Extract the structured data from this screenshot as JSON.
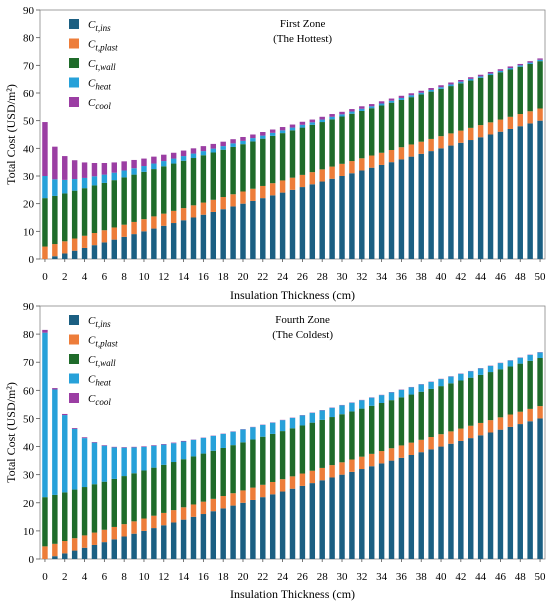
{
  "colors": {
    "ins": "#1b5f82",
    "plast": "#ed7d3a",
    "wall": "#1f6b2a",
    "heat": "#27a1d9",
    "cool": "#9b3ea3"
  },
  "chart_data": [
    {
      "type": "bar",
      "stacked": true,
      "title_line1": "First Zone",
      "title_line2": "(The Hottest)",
      "xlabel": "Insulation Thickness (cm)",
      "ylabel": "Total Cost (USD/m²)",
      "ylim": [
        0,
        90
      ],
      "yticks": [
        0,
        10,
        20,
        30,
        40,
        50,
        60,
        70,
        80,
        90
      ],
      "xtick_labels": [
        "0",
        "2",
        "4",
        "6",
        "8",
        "10",
        "12",
        "14",
        "16",
        "18",
        "20",
        "22",
        "24",
        "26",
        "28",
        "30",
        "32",
        "34",
        "36",
        "38",
        "40",
        "42",
        "44",
        "46",
        "48",
        "50"
      ],
      "categories": [
        0,
        1,
        2,
        3,
        4,
        5,
        6,
        7,
        8,
        9,
        10,
        11,
        12,
        13,
        14,
        15,
        16,
        17,
        18,
        19,
        20,
        21,
        22,
        23,
        24,
        25,
        26,
        27,
        28,
        29,
        30,
        31,
        32,
        33,
        34,
        35,
        36,
        37,
        38,
        39,
        40,
        41,
        42,
        43,
        44,
        45,
        46,
        47,
        48,
        49,
        50
      ],
      "legend": [
        {
          "key": "ins",
          "base": "C",
          "sub": "t,ins"
        },
        {
          "key": "plast",
          "base": "C",
          "sub": "t,plast"
        },
        {
          "key": "wall",
          "base": "C",
          "sub": "t,wall"
        },
        {
          "key": "heat",
          "base": "C",
          "sub": "heat"
        },
        {
          "key": "cool",
          "base": "C",
          "sub": "cool"
        }
      ],
      "series": [
        {
          "key": "ins",
          "values": [
            0.0,
            1.0,
            2.0,
            3.0,
            4.0,
            5.0,
            6.0,
            7.0,
            8.0,
            9.0,
            10.0,
            11.0,
            12.0,
            13.0,
            14.0,
            15.0,
            16.0,
            17.0,
            18.0,
            19.0,
            20.0,
            21.0,
            22.0,
            23.0,
            24.0,
            25.0,
            26.0,
            27.0,
            28.0,
            29.0,
            30.0,
            31.0,
            32.0,
            33.0,
            34.0,
            35.0,
            36.0,
            37.0,
            38.0,
            39.0,
            40.0,
            41.0,
            42.0,
            43.0,
            44.0,
            45.0,
            46.0,
            47.0,
            48.0,
            49.0,
            50.0
          ]
        },
        {
          "key": "plast",
          "values": [
            4.5,
            4.4,
            4.4,
            4.4,
            4.4,
            4.4,
            4.4,
            4.4,
            4.4,
            4.4,
            4.4,
            4.4,
            4.4,
            4.4,
            4.4,
            4.4,
            4.4,
            4.4,
            4.4,
            4.4,
            4.4,
            4.4,
            4.4,
            4.4,
            4.4,
            4.4,
            4.4,
            4.4,
            4.4,
            4.4,
            4.4,
            4.4,
            4.4,
            4.4,
            4.4,
            4.4,
            4.4,
            4.4,
            4.4,
            4.4,
            4.4,
            4.4,
            4.4,
            4.4,
            4.4,
            4.4,
            4.4,
            4.4,
            4.4,
            4.4,
            4.4
          ]
        },
        {
          "key": "wall",
          "values": [
            17.5,
            17.4,
            17.3,
            17.3,
            17.2,
            17.2,
            17.1,
            17.1,
            17.1,
            17.1,
            17.1,
            17.1,
            17.1,
            17.1,
            17.1,
            17.1,
            17.1,
            17.1,
            17.1,
            17.1,
            17.1,
            17.1,
            17.1,
            17.1,
            17.1,
            17.1,
            17.1,
            17.1,
            17.1,
            17.1,
            17.1,
            17.1,
            17.1,
            17.1,
            17.1,
            17.1,
            17.1,
            17.1,
            17.1,
            17.1,
            17.1,
            17.1,
            17.1,
            17.1,
            17.1,
            17.1,
            17.1,
            17.1,
            17.1,
            17.1,
            17.1
          ]
        },
        {
          "key": "heat",
          "values": [
            8.0,
            6.0,
            4.9,
            4.2,
            3.7,
            3.3,
            3.0,
            2.7,
            2.5,
            2.3,
            2.1,
            2.0,
            1.9,
            1.8,
            1.7,
            1.6,
            1.5,
            1.4,
            1.3,
            1.3,
            1.2,
            1.2,
            1.1,
            1.1,
            1.0,
            1.0,
            1.0,
            0.9,
            0.9,
            0.9,
            0.8,
            0.8,
            0.8,
            0.7,
            0.7,
            0.7,
            0.7,
            0.7,
            0.6,
            0.6,
            0.6,
            0.6,
            0.6,
            0.6,
            0.5,
            0.5,
            0.5,
            0.5,
            0.5,
            0.5,
            0.5
          ]
        },
        {
          "key": "cool",
          "values": [
            19.5,
            11.8,
            8.6,
            6.8,
            5.6,
            4.8,
            4.2,
            3.7,
            3.3,
            3.0,
            2.7,
            2.5,
            2.3,
            2.1,
            2.0,
            1.9,
            1.8,
            1.7,
            1.6,
            1.5,
            1.4,
            1.3,
            1.3,
            1.2,
            1.2,
            1.1,
            1.1,
            1.0,
            1.0,
            1.0,
            0.9,
            0.9,
            0.9,
            0.8,
            0.8,
            0.8,
            0.8,
            0.7,
            0.7,
            0.7,
            0.7,
            0.7,
            0.6,
            0.6,
            0.6,
            0.6,
            0.6,
            0.6,
            0.5,
            0.5,
            0.5
          ]
        }
      ]
    },
    {
      "type": "bar",
      "stacked": true,
      "title_line1": "Fourth Zone",
      "title_line2": "(The Coldest)",
      "xlabel": "Insulation Thickness (cm)",
      "ylabel": "Total Cost (USD/m²)",
      "ylim": [
        0,
        90
      ],
      "yticks": [
        0,
        10,
        20,
        30,
        40,
        50,
        60,
        70,
        80,
        90
      ],
      "xtick_labels": [
        "0",
        "2",
        "4",
        "6",
        "8",
        "10",
        "12",
        "14",
        "16",
        "18",
        "20",
        "22",
        "24",
        "26",
        "28",
        "30",
        "32",
        "34",
        "36",
        "38",
        "40",
        "42",
        "44",
        "46",
        "48",
        "50"
      ],
      "categories": [
        0,
        1,
        2,
        3,
        4,
        5,
        6,
        7,
        8,
        9,
        10,
        11,
        12,
        13,
        14,
        15,
        16,
        17,
        18,
        19,
        20,
        21,
        22,
        23,
        24,
        25,
        26,
        27,
        28,
        29,
        30,
        31,
        32,
        33,
        34,
        35,
        36,
        37,
        38,
        39,
        40,
        41,
        42,
        43,
        44,
        45,
        46,
        47,
        48,
        49,
        50
      ],
      "legend": [
        {
          "key": "ins",
          "base": "C",
          "sub": "t,ins"
        },
        {
          "key": "plast",
          "base": "C",
          "sub": "t,plast"
        },
        {
          "key": "wall",
          "base": "C",
          "sub": "t,wall"
        },
        {
          "key": "heat",
          "base": "C",
          "sub": "heat"
        },
        {
          "key": "cool",
          "base": "C",
          "sub": "cool"
        }
      ],
      "series": [
        {
          "key": "ins",
          "values": [
            0.0,
            1.0,
            2.0,
            3.0,
            4.0,
            5.0,
            6.0,
            7.0,
            8.0,
            9.0,
            10.0,
            11.0,
            12.0,
            13.0,
            14.0,
            15.0,
            16.0,
            17.0,
            18.0,
            19.0,
            20.0,
            21.0,
            22.0,
            23.0,
            24.0,
            25.0,
            26.0,
            27.0,
            28.0,
            29.0,
            30.0,
            31.0,
            32.0,
            33.0,
            34.0,
            35.0,
            36.0,
            37.0,
            38.0,
            39.0,
            40.0,
            41.0,
            42.0,
            43.0,
            44.0,
            45.0,
            46.0,
            47.0,
            48.0,
            49.0,
            50.0
          ]
        },
        {
          "key": "plast",
          "values": [
            4.5,
            4.4,
            4.4,
            4.4,
            4.4,
            4.4,
            4.4,
            4.4,
            4.4,
            4.4,
            4.4,
            4.4,
            4.4,
            4.4,
            4.4,
            4.4,
            4.4,
            4.4,
            4.4,
            4.4,
            4.4,
            4.4,
            4.4,
            4.4,
            4.4,
            4.4,
            4.4,
            4.4,
            4.4,
            4.4,
            4.4,
            4.4,
            4.4,
            4.4,
            4.4,
            4.4,
            4.4,
            4.4,
            4.4,
            4.4,
            4.4,
            4.4,
            4.4,
            4.4,
            4.4,
            4.4,
            4.4,
            4.4,
            4.4,
            4.4,
            4.4
          ]
        },
        {
          "key": "wall",
          "values": [
            17.5,
            17.4,
            17.3,
            17.3,
            17.2,
            17.2,
            17.1,
            17.1,
            17.1,
            17.1,
            17.1,
            17.1,
            17.1,
            17.1,
            17.1,
            17.1,
            17.1,
            17.1,
            17.1,
            17.1,
            17.1,
            17.1,
            17.1,
            17.1,
            17.1,
            17.1,
            17.1,
            17.1,
            17.1,
            17.1,
            17.1,
            17.1,
            17.1,
            17.1,
            17.1,
            17.1,
            17.1,
            17.1,
            17.1,
            17.1,
            17.1,
            17.1,
            17.1,
            17.1,
            17.1,
            17.1,
            17.1,
            17.1,
            17.1,
            17.1,
            17.1
          ]
        },
        {
          "key": "heat",
          "values": [
            58.5,
            37.5,
            27.5,
            21.6,
            17.4,
            14.8,
            12.8,
            11.2,
            10.1,
            9.2,
            8.4,
            7.8,
            7.2,
            6.7,
            6.3,
            5.9,
            5.6,
            5.3,
            5.0,
            4.8,
            4.6,
            4.4,
            4.2,
            4.0,
            3.9,
            3.7,
            3.6,
            3.5,
            3.4,
            3.3,
            3.2,
            3.1,
            3.0,
            2.9,
            2.8,
            2.8,
            2.7,
            2.6,
            2.6,
            2.5,
            2.5,
            2.4,
            2.4,
            2.3,
            2.3,
            2.2,
            2.2,
            2.1,
            2.1,
            2.1,
            2.0
          ]
        },
        {
          "key": "cool",
          "values": [
            1.0,
            0.5,
            0.4,
            0.3,
            0.3,
            0.2,
            0.2,
            0.2,
            0.2,
            0.2,
            0.2,
            0.2,
            0.2,
            0.2,
            0.2,
            0.1,
            0.1,
            0.1,
            0.1,
            0.1,
            0.1,
            0.1,
            0.1,
            0.1,
            0.1,
            0.1,
            0.1,
            0.1,
            0.1,
            0.1,
            0.1,
            0.1,
            0.1,
            0.1,
            0.1,
            0.1,
            0.1,
            0.1,
            0.1,
            0.1,
            0.1,
            0.1,
            0.1,
            0.1,
            0.1,
            0.1,
            0.1,
            0.1,
            0.1,
            0.1,
            0.1
          ]
        }
      ]
    }
  ]
}
